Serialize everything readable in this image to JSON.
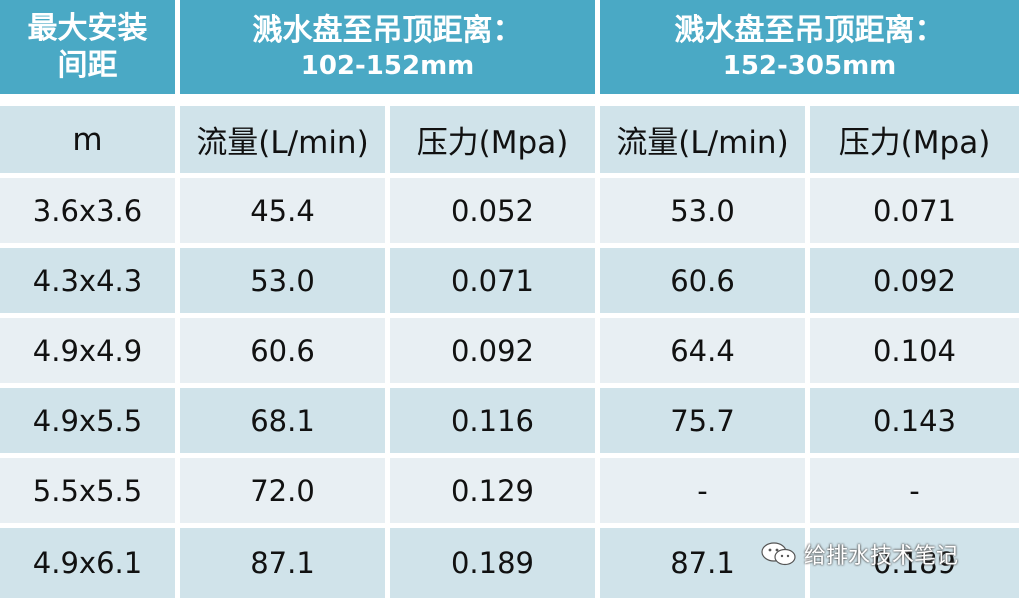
{
  "header": {
    "col1": "最大安装间距",
    "col2_title": "溅水盘至吊顶距离：",
    "col2_range": "102-152mm",
    "col3_title": "溅水盘至吊顶距离：",
    "col3_range": "152-305mm"
  },
  "subheader": [
    "m",
    "流量(L/min)",
    "压力(Mpa)",
    "流量(L/min)",
    "压力(Mpa)"
  ],
  "rows": [
    [
      "3.6x3.6",
      "45.4",
      "0.052",
      "53.0",
      "0.071"
    ],
    [
      "4.3x4.3",
      "53.0",
      "0.071",
      "60.6",
      "0.092"
    ],
    [
      "4.9x4.9",
      "60.6",
      "0.092",
      "64.4",
      "0.104"
    ],
    [
      "4.9x5.5",
      "68.1",
      "0.116",
      "75.7",
      "0.143"
    ],
    [
      "5.5x5.5",
      "72.0",
      "0.129",
      "-",
      "-"
    ],
    [
      "4.9x6.1",
      "87.1",
      "0.189",
      "87.1",
      "0.189"
    ]
  ],
  "watermark": {
    "icon": "wechat-icon",
    "text": "给排水技术笔记"
  },
  "colors": {
    "header_bg": "#4aa9c5",
    "row_light": "#e8eff3",
    "row_dark": "#d0e3ea"
  }
}
